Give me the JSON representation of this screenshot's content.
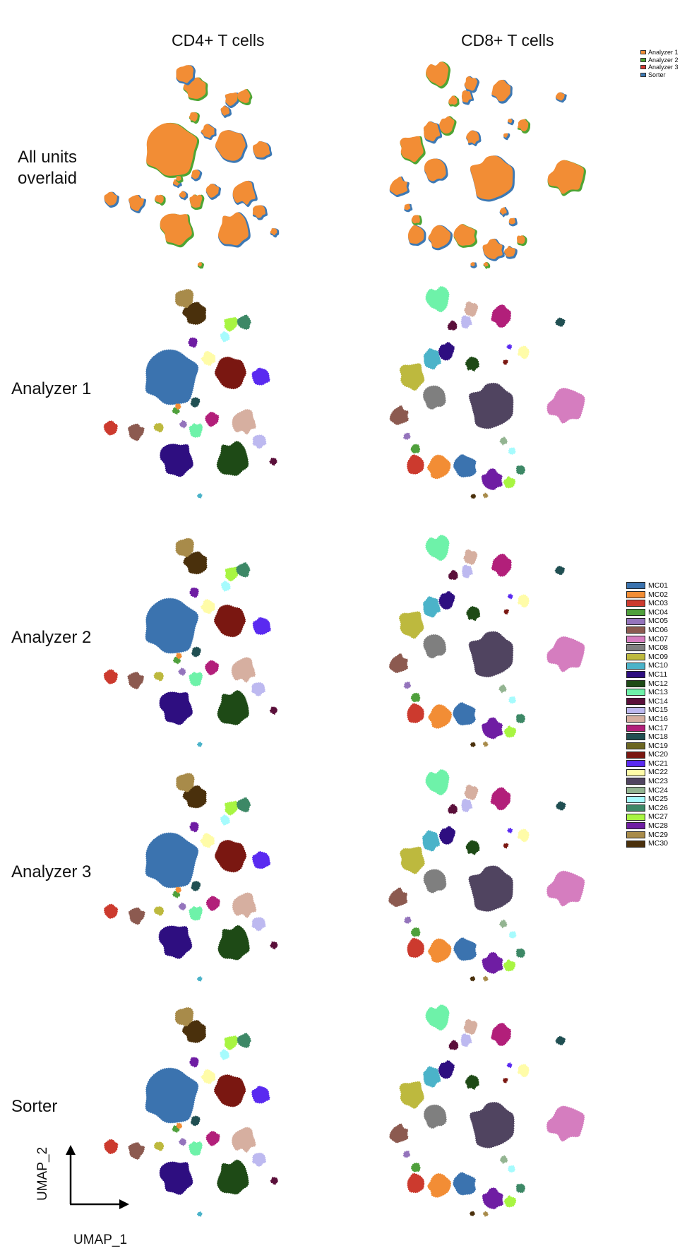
{
  "column_titles": [
    "CD4+ T cells",
    "CD8+ T cells"
  ],
  "row_labels": [
    "All units\noverlaid",
    "Analyzer 1",
    "Analyzer 2",
    "Analyzer 3",
    "Sorter"
  ],
  "overlay_legend": [
    {
      "label": "Analyzer 1",
      "color": "#F28D35"
    },
    {
      "label": "Analyzer 2",
      "color": "#4EA534"
    },
    {
      "label": "Analyzer 3",
      "color": "#D4362F"
    },
    {
      "label": "Sorter",
      "color": "#3D79B4"
    }
  ],
  "axis": {
    "x_label": "UMAP_1",
    "y_label": "UMAP_2"
  },
  "chart_data": {
    "type": "scatter",
    "description_units": "UMAP embedding, normalized 0-100 per panel",
    "metaclusters": [
      {
        "label": "MC01",
        "color": "#3B73AF"
      },
      {
        "label": "MC02",
        "color": "#F28D35"
      },
      {
        "label": "MC03",
        "color": "#CC3A2E"
      },
      {
        "label": "MC04",
        "color": "#4FA03C"
      },
      {
        "label": "MC05",
        "color": "#9474BC"
      },
      {
        "label": "MC06",
        "color": "#8C5A50"
      },
      {
        "label": "MC07",
        "color": "#D57DBF"
      },
      {
        "label": "MC08",
        "color": "#7F7F7F"
      },
      {
        "label": "MC09",
        "color": "#BDB93E"
      },
      {
        "label": "MC10",
        "color": "#4BB3C9"
      },
      {
        "label": "MC11",
        "color": "#2E0E80"
      },
      {
        "label": "MC12",
        "color": "#1E4A16"
      },
      {
        "label": "MC13",
        "color": "#6EF2A9"
      },
      {
        "label": "MC14",
        "color": "#5A0F3A"
      },
      {
        "label": "MC15",
        "color": "#BDB9F0"
      },
      {
        "label": "MC16",
        "color": "#D6AFA0"
      },
      {
        "label": "MC17",
        "color": "#B21F7A"
      },
      {
        "label": "MC18",
        "color": "#204F52"
      },
      {
        "label": "MC19",
        "color": "#6B6622"
      },
      {
        "label": "MC20",
        "color": "#7A1711"
      },
      {
        "label": "MC21",
        "color": "#5A2AF0"
      },
      {
        "label": "MC22",
        "color": "#FFFCA8"
      },
      {
        "label": "MC23",
        "color": "#504460"
      },
      {
        "label": "MC24",
        "color": "#93B491"
      },
      {
        "label": "MC25",
        "color": "#A6FBFD"
      },
      {
        "label": "MC26",
        "color": "#3D8866"
      },
      {
        "label": "MC27",
        "color": "#A8F542"
      },
      {
        "label": "MC28",
        "color": "#6F1DA3"
      },
      {
        "label": "MC29",
        "color": "#A88B4A"
      },
      {
        "label": "MC30",
        "color": "#4A300C"
      }
    ],
    "cd4_clusters": [
      {
        "mc": "MC01",
        "x": 31,
        "y": 43,
        "r": 12
      },
      {
        "mc": "MC20",
        "x": 60,
        "y": 40,
        "r": 7
      },
      {
        "mc": "MC21",
        "x": 74,
        "y": 42,
        "r": 4
      },
      {
        "mc": "MC30",
        "x": 43,
        "y": 12,
        "r": 5
      },
      {
        "mc": "MC29",
        "x": 38,
        "y": 5,
        "r": 4
      },
      {
        "mc": "MC27",
        "x": 60,
        "y": 17,
        "r": 3
      },
      {
        "mc": "MC26",
        "x": 66,
        "y": 16,
        "r": 3
      },
      {
        "mc": "MC25",
        "x": 57,
        "y": 23,
        "r": 2
      },
      {
        "mc": "MC22",
        "x": 49,
        "y": 33,
        "r": 3
      },
      {
        "mc": "MC28",
        "x": 42,
        "y": 26,
        "r": 2
      },
      {
        "mc": "MC18",
        "x": 43,
        "y": 54,
        "r": 2
      },
      {
        "mc": "MC04",
        "x": 34,
        "y": 58,
        "r": 1.5
      },
      {
        "mc": "MC02",
        "x": 35,
        "y": 56,
        "r": 1.2
      },
      {
        "mc": "MC05",
        "x": 37,
        "y": 64,
        "r": 1.5
      },
      {
        "mc": "MC17",
        "x": 51,
        "y": 62,
        "r": 3
      },
      {
        "mc": "MC13",
        "x": 43,
        "y": 67,
        "r": 3
      },
      {
        "mc": "MC16",
        "x": 66,
        "y": 63,
        "r": 5
      },
      {
        "mc": "MC15",
        "x": 73,
        "y": 72,
        "r": 3
      },
      {
        "mc": "MC09",
        "x": 26,
        "y": 66,
        "r": 2
      },
      {
        "mc": "MC03",
        "x": 3,
        "y": 66,
        "r": 3
      },
      {
        "mc": "MC06",
        "x": 15,
        "y": 68,
        "r": 3.5
      },
      {
        "mc": "MC11",
        "x": 34,
        "y": 80,
        "r": 7
      },
      {
        "mc": "MC12",
        "x": 61,
        "y": 81,
        "r": 7
      },
      {
        "mc": "MC14",
        "x": 80,
        "y": 82,
        "r": 1.5
      },
      {
        "mc": "MC10",
        "x": 45,
        "y": 98,
        "r": 1
      }
    ],
    "cd8_clusters": [
      {
        "mc": "MC13",
        "x": 21,
        "y": 5,
        "r": 5
      },
      {
        "mc": "MC16",
        "x": 36,
        "y": 10,
        "r": 3
      },
      {
        "mc": "MC15",
        "x": 34,
        "y": 16,
        "r": 2.5
      },
      {
        "mc": "MC14",
        "x": 28,
        "y": 18,
        "r": 2
      },
      {
        "mc": "MC17",
        "x": 50,
        "y": 13,
        "r": 4.5
      },
      {
        "mc": "MC18",
        "x": 77,
        "y": 16,
        "r": 2
      },
      {
        "mc": "MC11",
        "x": 25,
        "y": 30,
        "r": 3.5
      },
      {
        "mc": "MC10",
        "x": 18,
        "y": 33,
        "r": 4
      },
      {
        "mc": "MC12",
        "x": 37,
        "y": 36,
        "r": 3
      },
      {
        "mc": "MC22",
        "x": 60,
        "y": 30,
        "r": 2.5
      },
      {
        "mc": "MC21",
        "x": 54,
        "y": 28,
        "r": 1
      },
      {
        "mc": "MC20",
        "x": 52,
        "y": 35,
        "r": 1
      },
      {
        "mc": "MC09",
        "x": 9,
        "y": 41,
        "r": 5.5
      },
      {
        "mc": "MC08",
        "x": 20,
        "y": 52,
        "r": 5
      },
      {
        "mc": "MC23",
        "x": 46,
        "y": 56,
        "r": 10
      },
      {
        "mc": "MC07",
        "x": 80,
        "y": 55,
        "r": 8
      },
      {
        "mc": "MC06",
        "x": 3,
        "y": 60,
        "r": 4
      },
      {
        "mc": "MC05",
        "x": 7,
        "y": 70,
        "r": 1.5
      },
      {
        "mc": "MC04",
        "x": 11,
        "y": 76,
        "r": 2
      },
      {
        "mc": "MC03",
        "x": 11,
        "y": 84,
        "r": 4
      },
      {
        "mc": "MC02",
        "x": 22,
        "y": 85,
        "r": 5
      },
      {
        "mc": "MC01",
        "x": 33,
        "y": 84,
        "r": 5
      },
      {
        "mc": "MC24",
        "x": 51,
        "y": 72,
        "r": 1.5
      },
      {
        "mc": "MC25",
        "x": 55,
        "y": 77,
        "r": 1.5
      },
      {
        "mc": "MC26",
        "x": 59,
        "y": 86,
        "r": 2
      },
      {
        "mc": "MC27",
        "x": 54,
        "y": 92,
        "r": 2.5
      },
      {
        "mc": "MC28",
        "x": 46,
        "y": 91,
        "r": 4.5
      },
      {
        "mc": "MC29",
        "x": 43,
        "y": 98,
        "r": 1
      },
      {
        "mc": "MC30",
        "x": 37,
        "y": 98,
        "r": 1
      }
    ]
  }
}
